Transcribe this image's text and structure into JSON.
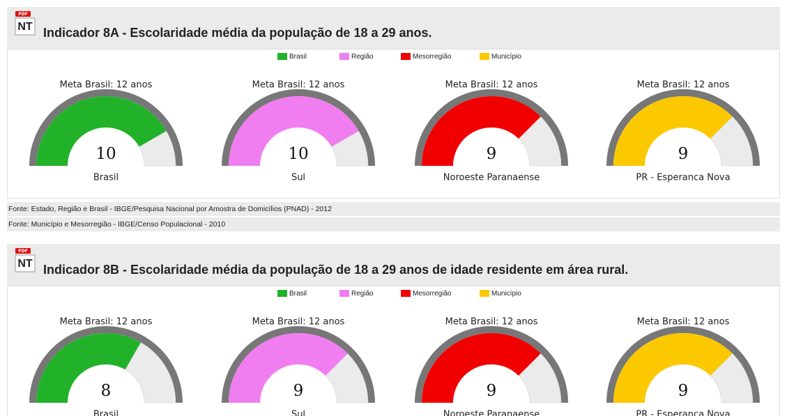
{
  "sections": [
    {
      "icon_badge": "PDF",
      "icon_text": "NT",
      "title": "Indicador 8A - Escolaridade média da população de 18 a 29 anos.",
      "legend": [
        {
          "name": "Brasil",
          "color": "#22b22a"
        },
        {
          "name": "Região",
          "color": "#f07ef0"
        },
        {
          "name": "Mesorregião",
          "color": "#f00000"
        },
        {
          "name": "Município",
          "color": "#fcc800"
        }
      ],
      "gauges": [
        {
          "caption": "Meta Brasil: 12 anos",
          "value": 10,
          "label": "Brasil",
          "color": "#22b22a",
          "range": [
            0,
            12
          ]
        },
        {
          "caption": "Meta Brasil: 12 anos",
          "value": 10,
          "label": "Sul",
          "color": "#f07ef0",
          "range": [
            0,
            12
          ]
        },
        {
          "caption": "Meta Brasil: 12 anos",
          "value": 9,
          "label": "Noroeste Paranaense",
          "color": "#f00000",
          "range": [
            0,
            12
          ]
        },
        {
          "caption": "Meta Brasil: 12 anos",
          "value": 9,
          "label": "PR - Esperanca Nova",
          "color": "#fcc800",
          "range": [
            0,
            12
          ]
        }
      ],
      "sources": [
        "Fonte: Estado, Região e Brasil - IBGE/Pesquisa Nacional por Amostra de Domicílios (PNAD) - 2012",
        "Fonte: Município e Mesorregião - IBGE/Censo Populacional - 2010"
      ]
    },
    {
      "icon_badge": "PDF",
      "icon_text": "NT",
      "title": "Indicador 8B - Escolaridade média da população de 18 a 29 anos de idade residente em área rural.",
      "legend": [
        {
          "name": "Brasil",
          "color": "#22b22a"
        },
        {
          "name": "Região",
          "color": "#f07ef0"
        },
        {
          "name": "Mesorregião",
          "color": "#f00000"
        },
        {
          "name": "Município",
          "color": "#fcc800"
        }
      ],
      "gauges": [
        {
          "caption": "Meta Brasil: 12 anos",
          "value": 8,
          "label": "Brasil",
          "color": "#22b22a",
          "range": [
            0,
            12
          ]
        },
        {
          "caption": "Meta Brasil: 12 anos",
          "value": 9,
          "label": "Sul",
          "color": "#f07ef0",
          "range": [
            0,
            12
          ]
        },
        {
          "caption": "Meta Brasil: 12 anos",
          "value": 9,
          "label": "Noroeste Paranaense",
          "color": "#f00000",
          "range": [
            0,
            12
          ]
        },
        {
          "caption": "Meta Brasil: 12 anos",
          "value": 9,
          "label": "PR - Esperanca Nova",
          "color": "#fcc800",
          "range": [
            0,
            12
          ]
        }
      ],
      "sources": []
    }
  ]
}
